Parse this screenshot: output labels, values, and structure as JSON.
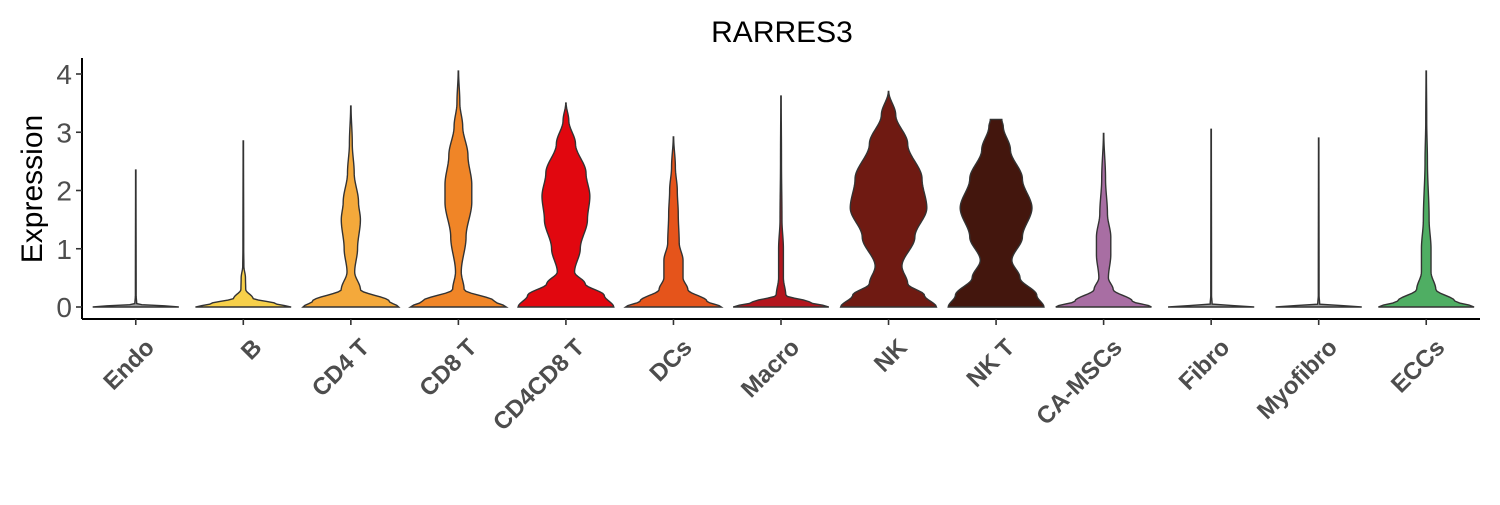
{
  "chart_data": {
    "type": "violin",
    "title": "RARRES3",
    "ylabel": "Expression",
    "xlabel": "",
    "ylim": [
      -0.2,
      4.25
    ],
    "yticks": [
      0,
      1,
      2,
      3,
      4
    ],
    "grid": false,
    "legend": "none",
    "categories": [
      "Endo",
      "B",
      "CD4 T",
      "CD8 T",
      "CD4CD8 T",
      "DCs",
      "Macro",
      "NK",
      "NK T",
      "CA-MSCs",
      "Fibro",
      "Myofibro",
      "ECCs"
    ],
    "series": [
      {
        "category": "Endo",
        "color": "#9e9e9e",
        "max": 2.35,
        "profile": [
          [
            0,
            0.9
          ],
          [
            0.05,
            0.02
          ],
          [
            0.2,
            0.008
          ],
          [
            2.35,
            0.004
          ]
        ]
      },
      {
        "category": "B",
        "color": "#f7d04a",
        "max": 2.85,
        "profile": [
          [
            0,
            1.0
          ],
          [
            0.05,
            0.7
          ],
          [
            0.15,
            0.2
          ],
          [
            0.3,
            0.05
          ],
          [
            0.5,
            0.045
          ],
          [
            0.7,
            0.012
          ],
          [
            1.0,
            0.008
          ],
          [
            2.85,
            0.004
          ]
        ]
      },
      {
        "category": "CD4 T",
        "color": "#f4a93b",
        "max": 3.45,
        "profile": [
          [
            0,
            1.0
          ],
          [
            0.1,
            0.8
          ],
          [
            0.3,
            0.2
          ],
          [
            0.6,
            0.08
          ],
          [
            1.0,
            0.14
          ],
          [
            1.5,
            0.2
          ],
          [
            1.8,
            0.16
          ],
          [
            2.3,
            0.07
          ],
          [
            2.8,
            0.03
          ],
          [
            3.45,
            0.004
          ]
        ]
      },
      {
        "category": "CD8 T",
        "color": "#f08527",
        "max": 4.05,
        "profile": [
          [
            0,
            1.0
          ],
          [
            0.1,
            0.75
          ],
          [
            0.3,
            0.12
          ],
          [
            0.6,
            0.06
          ],
          [
            1.2,
            0.16
          ],
          [
            1.8,
            0.28
          ],
          [
            2.1,
            0.28
          ],
          [
            2.6,
            0.2
          ],
          [
            3.1,
            0.09
          ],
          [
            3.5,
            0.03
          ],
          [
            4.05,
            0.004
          ]
        ]
      },
      {
        "category": "CD4CD8 T",
        "color": "#e1070f",
        "max": 3.5,
        "profile": [
          [
            0,
            1.0
          ],
          [
            0.2,
            0.8
          ],
          [
            0.4,
            0.4
          ],
          [
            0.6,
            0.18
          ],
          [
            1.0,
            0.3
          ],
          [
            1.5,
            0.45
          ],
          [
            1.9,
            0.5
          ],
          [
            2.3,
            0.42
          ],
          [
            2.8,
            0.2
          ],
          [
            3.2,
            0.06
          ],
          [
            3.5,
            0.004
          ]
        ]
      },
      {
        "category": "DCs",
        "color": "#e5541b",
        "max": 2.92,
        "profile": [
          [
            0,
            1.0
          ],
          [
            0.1,
            0.7
          ],
          [
            0.3,
            0.3
          ],
          [
            0.5,
            0.2
          ],
          [
            0.8,
            0.2
          ],
          [
            1.1,
            0.12
          ],
          [
            1.6,
            0.1
          ],
          [
            2.0,
            0.08
          ],
          [
            2.4,
            0.04
          ],
          [
            2.92,
            0.004
          ]
        ]
      },
      {
        "category": "Macro",
        "color": "#b3151d",
        "max": 3.62,
        "profile": [
          [
            0,
            1.0
          ],
          [
            0.08,
            0.6
          ],
          [
            0.2,
            0.1
          ],
          [
            0.5,
            0.05
          ],
          [
            1.0,
            0.05
          ],
          [
            1.5,
            0.02
          ],
          [
            2.5,
            0.01
          ],
          [
            3.62,
            0.004
          ]
        ]
      },
      {
        "category": "NK",
        "color": "#6f1a12",
        "max": 3.7,
        "profile": [
          [
            0,
            1.0
          ],
          [
            0.2,
            0.75
          ],
          [
            0.4,
            0.4
          ],
          [
            0.7,
            0.28
          ],
          [
            1.2,
            0.55
          ],
          [
            1.7,
            0.8
          ],
          [
            2.2,
            0.7
          ],
          [
            2.8,
            0.4
          ],
          [
            3.3,
            0.15
          ],
          [
            3.7,
            0.004
          ]
        ]
      },
      {
        "category": "NK T",
        "color": "#43160d",
        "max": 3.22,
        "profile": [
          [
            0,
            1.0
          ],
          [
            0.2,
            0.85
          ],
          [
            0.5,
            0.5
          ],
          [
            0.8,
            0.33
          ],
          [
            1.2,
            0.55
          ],
          [
            1.7,
            0.75
          ],
          [
            2.2,
            0.55
          ],
          [
            2.7,
            0.3
          ],
          [
            3.1,
            0.15
          ],
          [
            3.22,
            0.12
          ]
        ]
      },
      {
        "category": "CA-MSCs",
        "color": "#a86ea3",
        "max": 2.98,
        "profile": [
          [
            0,
            1.0
          ],
          [
            0.1,
            0.6
          ],
          [
            0.3,
            0.2
          ],
          [
            0.5,
            0.1
          ],
          [
            0.9,
            0.15
          ],
          [
            1.2,
            0.15
          ],
          [
            1.6,
            0.08
          ],
          [
            2.2,
            0.04
          ],
          [
            2.98,
            0.004
          ]
        ]
      },
      {
        "category": "Fibro",
        "color": "#9e9e9e",
        "max": 3.05,
        "profile": [
          [
            0,
            0.9
          ],
          [
            0.05,
            0.02
          ],
          [
            0.2,
            0.008
          ],
          [
            3.05,
            0.004
          ]
        ]
      },
      {
        "category": "Myofibro",
        "color": "#9e9e9e",
        "max": 2.9,
        "profile": [
          [
            0,
            0.9
          ],
          [
            0.05,
            0.02
          ],
          [
            0.2,
            0.008
          ],
          [
            2.9,
            0.004
          ]
        ]
      },
      {
        "category": "ECCs",
        "color": "#4fae63",
        "max": 4.05,
        "profile": [
          [
            0,
            1.0
          ],
          [
            0.1,
            0.6
          ],
          [
            0.3,
            0.2
          ],
          [
            0.6,
            0.1
          ],
          [
            1.0,
            0.1
          ],
          [
            1.5,
            0.06
          ],
          [
            2.5,
            0.025
          ],
          [
            3.2,
            0.01
          ],
          [
            4.05,
            0.004
          ]
        ]
      }
    ]
  }
}
